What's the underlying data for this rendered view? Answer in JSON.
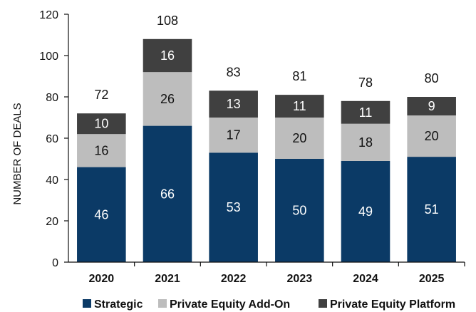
{
  "chart_data": {
    "type": "bar",
    "stacked": true,
    "categories": [
      "2020",
      "2021",
      "2022",
      "2023",
      "2024",
      "2025"
    ],
    "series": [
      {
        "name": "Strategic",
        "values": [
          46,
          66,
          53,
          50,
          49,
          51
        ],
        "color": "#0b3a66",
        "label_color": "#ffffff"
      },
      {
        "name": "Private Equity Add-On",
        "values": [
          16,
          26,
          17,
          20,
          18,
          20
        ],
        "color": "#bdbdbd",
        "label_color": "#111111"
      },
      {
        "name": "Private Equity Platform",
        "values": [
          10,
          16,
          13,
          11,
          11,
          9
        ],
        "color": "#404040",
        "label_color": "#ffffff"
      }
    ],
    "totals": [
      72,
      108,
      83,
      81,
      78,
      80
    ],
    "ylabel": "NUMBER OF DEALS",
    "xlabel": "",
    "ylim": [
      0,
      120
    ],
    "yticks": [
      0,
      20,
      40,
      60,
      80,
      100,
      120
    ],
    "grid": false,
    "legend_position": "bottom"
  }
}
